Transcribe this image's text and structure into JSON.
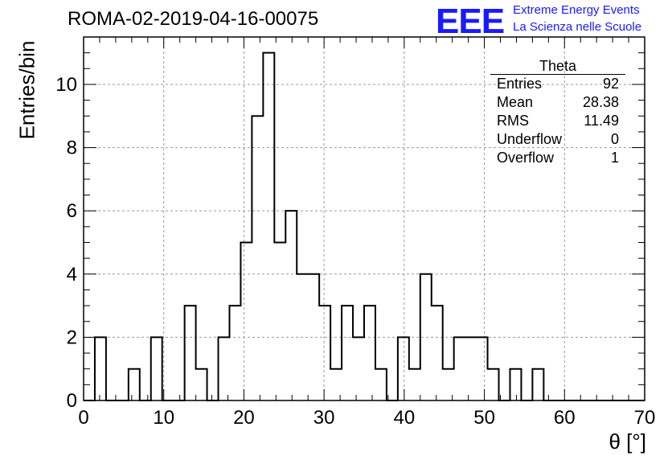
{
  "header": {
    "title": "ROMA-02-2019-04-16-00075"
  },
  "logo": {
    "mark": "EEE",
    "line1": "Extreme Energy Events",
    "line2": "La Scienza nelle Scuole",
    "color": "#1a1aff"
  },
  "stats": {
    "title": "Theta",
    "rows": [
      {
        "label": "Entries",
        "value": "92"
      },
      {
        "label": "Mean",
        "value": "28.38"
      },
      {
        "label": "RMS",
        "value": "11.49"
      },
      {
        "label": "Underflow",
        "value": "0"
      },
      {
        "label": "Overflow",
        "value": "1"
      }
    ]
  },
  "chart_data": {
    "type": "bar",
    "style": "step-histogram",
    "title": "ROMA-02-2019-04-16-00075",
    "xlabel": "θ [°]",
    "ylabel": "Entries/bin",
    "xlim": [
      0,
      70
    ],
    "ylim": [
      0,
      11.5
    ],
    "grid": true,
    "x_ticks": [
      0,
      10,
      20,
      30,
      40,
      50,
      60,
      70
    ],
    "y_ticks": [
      0,
      2,
      4,
      6,
      8,
      10
    ],
    "bin_edges": [
      0,
      1.4,
      2.8,
      4.2,
      5.6,
      7,
      8.4,
      9.8,
      11.2,
      12.6,
      14,
      15.4,
      16.8,
      18.2,
      19.6,
      21,
      22.4,
      23.8,
      25.2,
      26.6,
      28,
      29.4,
      30.8,
      32.2,
      33.6,
      35,
      36.4,
      37.8,
      39.2,
      40.6,
      42,
      43.4,
      44.8,
      46.2,
      47.6,
      49,
      50.4,
      51.8,
      53.2,
      54.6,
      56,
      57.4,
      58.8,
      60.2,
      61.6,
      63,
      64.4,
      65.8,
      67.2,
      68.6,
      70
    ],
    "values": [
      0,
      2,
      0,
      0,
      1,
      0,
      2,
      0,
      0,
      3,
      1,
      0,
      2,
      3,
      5,
      9,
      11,
      5,
      6,
      4,
      4,
      3,
      1,
      3,
      2,
      3,
      1,
      0,
      2,
      1,
      4,
      3,
      1,
      2,
      2,
      2,
      1,
      0,
      1,
      0,
      1,
      0,
      0,
      0,
      0,
      0,
      0,
      0,
      0,
      0
    ],
    "line_color": "#000000"
  }
}
